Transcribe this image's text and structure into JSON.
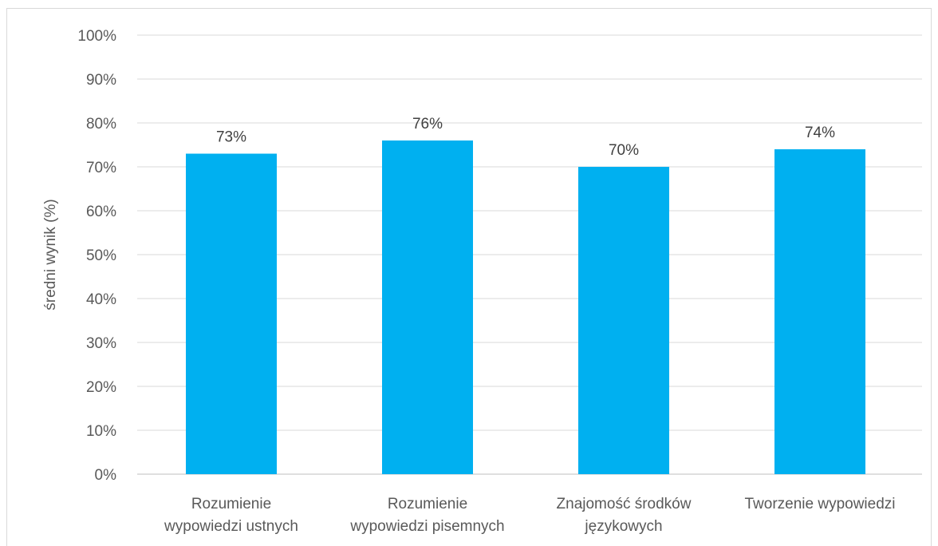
{
  "chart_data": {
    "type": "bar",
    "categories": [
      [
        "Rozumienie",
        "wypowiedzi ustnych"
      ],
      [
        "Rozumienie",
        "wypowiedzi pisemnych"
      ],
      [
        "Znajomość środków",
        "językowych"
      ],
      [
        "Tworzenie wypowiedzi"
      ]
    ],
    "values": [
      73,
      76,
      70,
      74
    ],
    "data_labels": [
      "73%",
      "76%",
      "70%",
      "74%"
    ],
    "title": "",
    "xlabel": "",
    "ylabel": "średni wynik (%)",
    "ylim": [
      0,
      100
    ],
    "yticks": [
      "0%",
      "10%",
      "20%",
      "30%",
      "40%",
      "50%",
      "60%",
      "70%",
      "80%",
      "90%",
      "100%"
    ],
    "grid": true,
    "legend": "none",
    "colors": {
      "bar": "#00b0f0",
      "grid": "#d9d9d9",
      "text": "#595959"
    }
  }
}
